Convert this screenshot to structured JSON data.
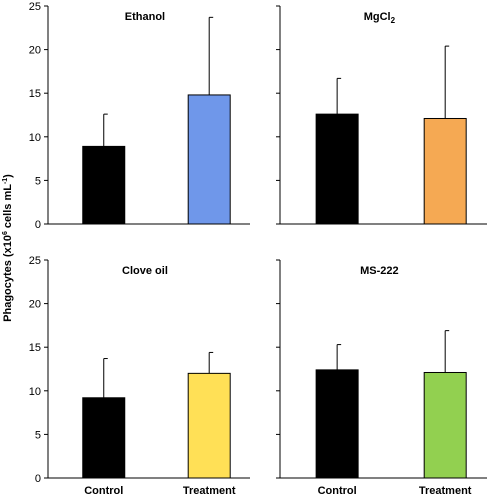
{
  "y_axis_title": {
    "main": "Phagocytes (x10",
    "sup1": "6",
    "mid": " cells mL",
    "sup2": "-1",
    "end": ")"
  },
  "chart_data": [
    {
      "type": "bar",
      "title": "Ethanol",
      "title_parts": {
        "text": "Ethanol",
        "sub": ""
      },
      "categories": [
        "Control",
        "Treatment"
      ],
      "values": [
        8.9,
        14.8
      ],
      "errors": [
        3.7,
        8.9
      ],
      "colors": [
        "#000000",
        "#6f97ea"
      ],
      "ylim": [
        0,
        25
      ],
      "yticks": [
        0,
        5,
        10,
        15,
        20,
        25
      ],
      "xlabel": "",
      "ylabel": "Phagocytes (x10^6 cells mL^-1)",
      "show_category_labels": false,
      "show_tick_labels": true
    },
    {
      "type": "bar",
      "title": "MgCl2",
      "title_parts": {
        "text": "MgCl",
        "sub": "2"
      },
      "categories": [
        "Control",
        "Treatment"
      ],
      "values": [
        12.6,
        12.1
      ],
      "errors": [
        4.1,
        8.3
      ],
      "colors": [
        "#000000",
        "#f5a953"
      ],
      "ylim": [
        0,
        25
      ],
      "yticks": [
        0,
        5,
        10,
        15,
        20,
        25
      ],
      "xlabel": "",
      "ylabel": "",
      "show_category_labels": false,
      "show_tick_labels": false
    },
    {
      "type": "bar",
      "title": "Clove oil",
      "title_parts": {
        "text": "Clove oil",
        "sub": ""
      },
      "categories": [
        "Control",
        "Treatment"
      ],
      "values": [
        9.2,
        12.0
      ],
      "errors": [
        4.5,
        2.4
      ],
      "colors": [
        "#000000",
        "#ffe056"
      ],
      "ylim": [
        0,
        25
      ],
      "yticks": [
        0,
        5,
        10,
        15,
        20,
        25
      ],
      "xlabel": "",
      "ylabel": "Phagocytes (x10^6 cells mL^-1)",
      "show_category_labels": true,
      "show_tick_labels": true
    },
    {
      "type": "bar",
      "title": "MS-222",
      "title_parts": {
        "text": "MS-222",
        "sub": ""
      },
      "categories": [
        "Control",
        "Treatment"
      ],
      "values": [
        12.4,
        12.1
      ],
      "errors": [
        2.9,
        4.8
      ],
      "colors": [
        "#000000",
        "#92d050"
      ],
      "ylim": [
        0,
        25
      ],
      "yticks": [
        0,
        5,
        10,
        15,
        20,
        25
      ],
      "xlabel": "",
      "ylabel": "",
      "show_category_labels": true,
      "show_tick_labels": false
    }
  ]
}
